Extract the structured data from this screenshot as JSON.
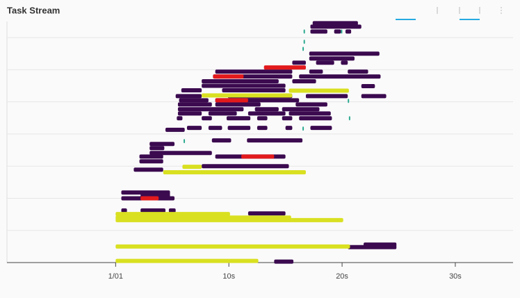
{
  "chart_data": {
    "type": "gantt",
    "title": "Task Stream",
    "xlim": [
      -9.6,
      35.1
    ],
    "ylim": [
      0,
      7.5
    ],
    "xticks": [
      {
        "value": 0,
        "label": "1/01"
      },
      {
        "value": 10,
        "label": "10s"
      },
      {
        "value": 20,
        "label": "20s"
      },
      {
        "value": 30,
        "label": "30s"
      }
    ],
    "ygrid": [
      1,
      2,
      3,
      4,
      5,
      6,
      7
    ],
    "series": [
      {
        "color": "#3b0a4f",
        "tasks": [
          [
            14.0,
            15.7,
            0.03
          ],
          [
            20.5,
            24.8,
            0.48
          ],
          [
            21.9,
            24.8,
            0.56
          ],
          [
            11.7,
            15.0,
            1.53
          ],
          [
            0.5,
            1.0,
            1.62
          ],
          [
            2.2,
            4.4,
            1.62
          ],
          [
            4.7,
            5.3,
            1.62
          ],
          [
            0.5,
            5.2,
            2.0
          ],
          [
            0.5,
            4.8,
            2.18
          ],
          [
            2.2,
            4.8,
            2.1
          ],
          [
            1.6,
            4.2,
            2.89
          ],
          [
            7.6,
            15.3,
            3.0
          ],
          [
            2.1,
            4.2,
            3.15
          ],
          [
            2.1,
            4.2,
            3.3
          ],
          [
            8.8,
            15.0,
            3.3
          ],
          [
            3.0,
            8.5,
            3.41
          ],
          [
            3.0,
            4.3,
            3.56
          ],
          [
            3.0,
            5.2,
            3.69
          ],
          [
            8.5,
            10.2,
            3.8
          ],
          [
            11.6,
            16.5,
            3.8
          ],
          [
            4.4,
            6.1,
            4.13
          ],
          [
            6.3,
            7.6,
            4.19
          ],
          [
            8.2,
            9.4,
            4.19
          ],
          [
            9.9,
            11.9,
            4.19
          ],
          [
            12.5,
            13.4,
            4.19
          ],
          [
            15.0,
            15.6,
            4.19
          ],
          [
            17.2,
            19.1,
            4.19
          ],
          [
            5.4,
            5.9,
            4.49
          ],
          [
            7.6,
            8.5,
            4.49
          ],
          [
            9.8,
            11.9,
            4.49
          ],
          [
            12.5,
            13.4,
            4.49
          ],
          [
            14.7,
            15.6,
            4.49
          ],
          [
            16.2,
            19.1,
            4.49
          ],
          [
            5.5,
            7.6,
            4.64
          ],
          [
            8.2,
            10.7,
            4.64
          ],
          [
            11.7,
            15.0,
            4.64
          ],
          [
            15.3,
            19.0,
            4.64
          ],
          [
            5.5,
            11.3,
            4.77
          ],
          [
            12.3,
            14.4,
            4.77
          ],
          [
            14.7,
            18.0,
            4.77
          ],
          [
            5.5,
            8.5,
            4.92
          ],
          [
            8.8,
            12.8,
            4.92
          ],
          [
            15.9,
            18.7,
            4.92
          ],
          [
            5.6,
            8.2,
            5.05
          ],
          [
            8.8,
            16.2,
            5.05
          ],
          [
            5.3,
            7.6,
            5.18
          ],
          [
            9.9,
            15.6,
            5.18
          ],
          [
            16.8,
            20.5,
            5.18
          ],
          [
            21.7,
            23.9,
            5.18
          ],
          [
            5.8,
            7.6,
            5.36
          ],
          [
            9.4,
            15.0,
            5.36
          ],
          [
            21.7,
            22.9,
            5.49
          ],
          [
            7.6,
            15.0,
            5.5
          ],
          [
            7.6,
            14.4,
            5.64
          ],
          [
            15.6,
            17.7,
            5.64
          ],
          [
            8.6,
            15.6,
            5.79
          ],
          [
            16.2,
            23.4,
            5.79
          ],
          [
            8.8,
            15.6,
            5.94
          ],
          [
            17.1,
            18.3,
            5.94
          ],
          [
            20.5,
            22.3,
            5.94
          ],
          [
            15.6,
            16.8,
            6.22
          ],
          [
            17.7,
            19.3,
            6.22
          ],
          [
            19.9,
            20.5,
            6.22
          ],
          [
            17.1,
            21.1,
            6.35
          ],
          [
            17.1,
            23.3,
            6.5
          ],
          [
            17.2,
            18.7,
            7.19
          ],
          [
            19.3,
            19.9,
            7.19
          ],
          [
            20.3,
            20.8,
            7.19
          ],
          [
            17.2,
            21.7,
            7.34
          ],
          [
            17.4,
            21.4,
            7.45
          ]
        ]
      },
      {
        "color": "#d9e021",
        "tasks": [
          [
            0,
            12.6,
            0.05
          ],
          [
            0,
            20.7,
            0.5
          ],
          [
            0,
            10.1,
            1.51
          ],
          [
            0,
            15.5,
            1.4
          ],
          [
            0,
            20.1,
            1.32
          ],
          [
            4.2,
            16.8,
            2.81
          ],
          [
            5.9,
            7.6,
            2.98
          ],
          [
            7.6,
            15.6,
            5.2
          ],
          [
            15.3,
            20.6,
            5.35
          ]
        ]
      },
      {
        "color": "#e31a1c",
        "tasks": [
          [
            2.2,
            3.8,
            2.0
          ],
          [
            11.1,
            14.0,
            3.3
          ],
          [
            8.8,
            11.7,
            5.05
          ],
          [
            8.6,
            11.3,
            5.79
          ],
          [
            13.1,
            16.8,
            6.07
          ]
        ]
      },
      {
        "color": "#2aa98f",
        "tasks": [
          [
            16.6,
            16.7,
            7.19
          ],
          [
            16.6,
            16.7,
            6.87
          ],
          [
            16.5,
            16.6,
            6.65
          ],
          [
            19.9,
            20.0,
            7.19
          ],
          [
            20.5,
            20.6,
            5.03
          ],
          [
            20.6,
            20.7,
            4.49
          ],
          [
            16.5,
            16.6,
            4.17
          ],
          [
            6.0,
            6.1,
            3.78
          ]
        ]
      }
    ]
  }
}
